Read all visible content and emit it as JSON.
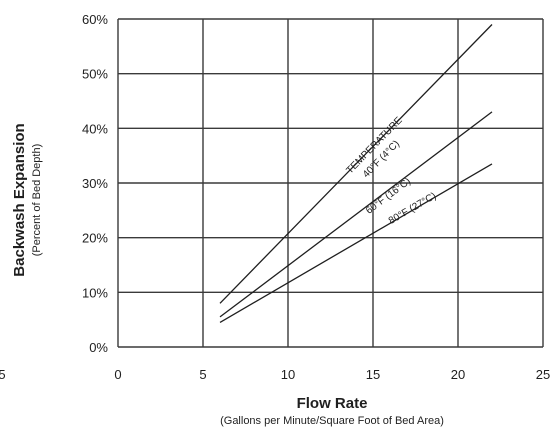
{
  "chart_data": {
    "type": "line",
    "xlabel": "Flow Rate",
    "xlabel_sub": "(Gallons per Minute/Square Foot of Bed Area)",
    "ylabel": "Backwash Expansion",
    "ylabel_sub": "(Percent of Bed Depth)",
    "xlim": [
      0,
      25
    ],
    "ylim": [
      0,
      60
    ],
    "x_ticks": [
      "0",
      "5",
      "10",
      "15",
      "20",
      "25"
    ],
    "x_tick_values": [
      0,
      5,
      10,
      15,
      20,
      25
    ],
    "y_ticks": [
      "0%",
      "10%",
      "20%",
      "30%",
      "40%",
      "50%",
      "60%"
    ],
    "y_tick_values": [
      0,
      10,
      20,
      30,
      40,
      50,
      60
    ],
    "grid": true,
    "stray_left_tick": "5",
    "series": [
      {
        "name": "40°F (4°C)",
        "x": [
          6,
          22
        ],
        "y": [
          8,
          59
        ]
      },
      {
        "name": "60°F (16°C)",
        "x": [
          6,
          22
        ],
        "y": [
          5.5,
          43
        ]
      },
      {
        "name": "80°F (27°C)",
        "x": [
          6,
          22
        ],
        "y": [
          4.5,
          33.5
        ]
      }
    ],
    "annotations": [
      {
        "text": "TEMPERATURE",
        "x": 15.2,
        "y": 36.5,
        "series": 0
      },
      {
        "text": "40°F (4°C)",
        "x": 15.6,
        "y": 34.0,
        "series": 0
      },
      {
        "text": "60°F (16°C)",
        "x": 16.0,
        "y": 27.2,
        "series": 1
      },
      {
        "text": "80°F (27°C)",
        "x": 17.4,
        "y": 24.9,
        "series": 2
      }
    ],
    "colors": {
      "line": "#1f1f1f",
      "grid": "#3a3a3a",
      "background": "#ffffff"
    }
  }
}
